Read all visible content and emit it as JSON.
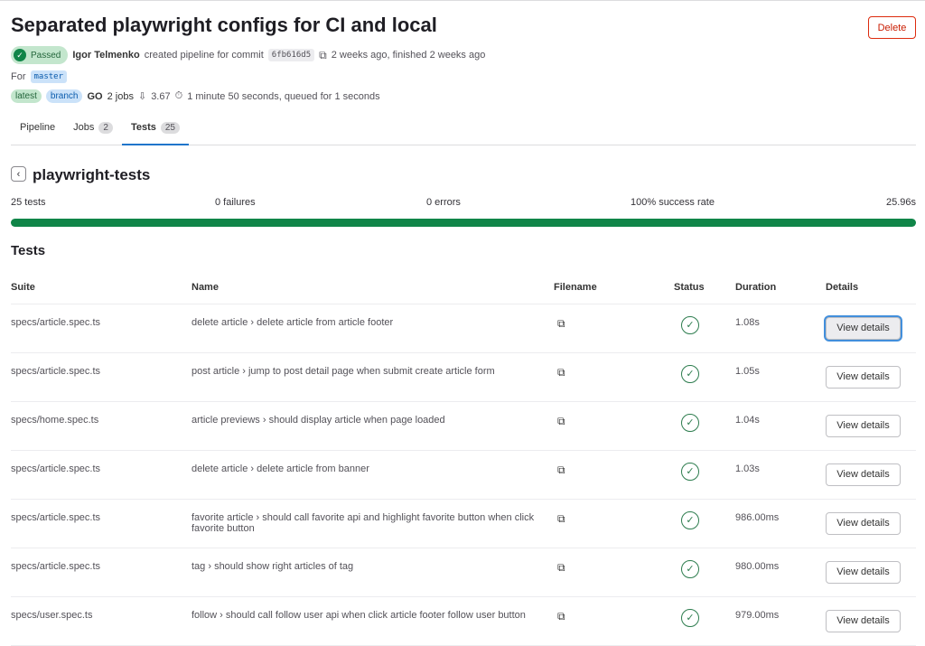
{
  "header": {
    "title": "Separated playwright configs for CI and local",
    "delete_label": "Delete",
    "status": "Passed",
    "author": "Igor Telmenko",
    "action": "created pipeline for commit",
    "commit": "6fb616d5",
    "time": "2 weeks ago, finished 2 weeks ago",
    "for_label": "For",
    "branch": "master",
    "tag_latest": "latest",
    "tag_branch": "branch",
    "jobs": "2 jobs",
    "score": "3.67",
    "duration": "1 minute 50 seconds, queued for 1 seconds"
  },
  "tabs": [
    {
      "label": "Pipeline"
    },
    {
      "label": "Jobs",
      "count": "2"
    },
    {
      "label": "Tests",
      "count": "25"
    }
  ],
  "suite": {
    "name": "playwright-tests",
    "tests": "25 tests",
    "failures": "0 failures",
    "errors": "0 errors",
    "success": "100% success rate",
    "time": "25.96s",
    "success_rate": 100
  },
  "tests_heading": "Tests",
  "columns": [
    "Suite",
    "Name",
    "Filename",
    "Status",
    "Duration",
    "Details"
  ],
  "rows": [
    {
      "suite": "specs/article.spec.ts",
      "name": "delete article › delete article from article footer",
      "duration": "1.08s",
      "details": "View details"
    },
    {
      "suite": "specs/article.spec.ts",
      "name": "post article › jump to post detail page when submit create article form",
      "duration": "1.05s",
      "details": "View details"
    },
    {
      "suite": "specs/home.spec.ts",
      "name": "article previews › should display article when page loaded",
      "duration": "1.04s",
      "details": "View details"
    },
    {
      "suite": "specs/article.spec.ts",
      "name": "delete article › delete article from banner",
      "duration": "1.03s",
      "details": "View details"
    },
    {
      "suite": "specs/article.spec.ts",
      "name": "favorite article › should call favorite api and highlight favorite button when click favorite button",
      "duration": "986.00ms",
      "details": "View details"
    },
    {
      "suite": "specs/article.spec.ts",
      "name": "tag › should show right articles of tag",
      "duration": "980.00ms",
      "details": "View details"
    },
    {
      "suite": "specs/user.spec.ts",
      "name": "follow › should call follow user api when click article footer follow user button",
      "duration": "979.00ms",
      "details": "View details"
    }
  ]
}
